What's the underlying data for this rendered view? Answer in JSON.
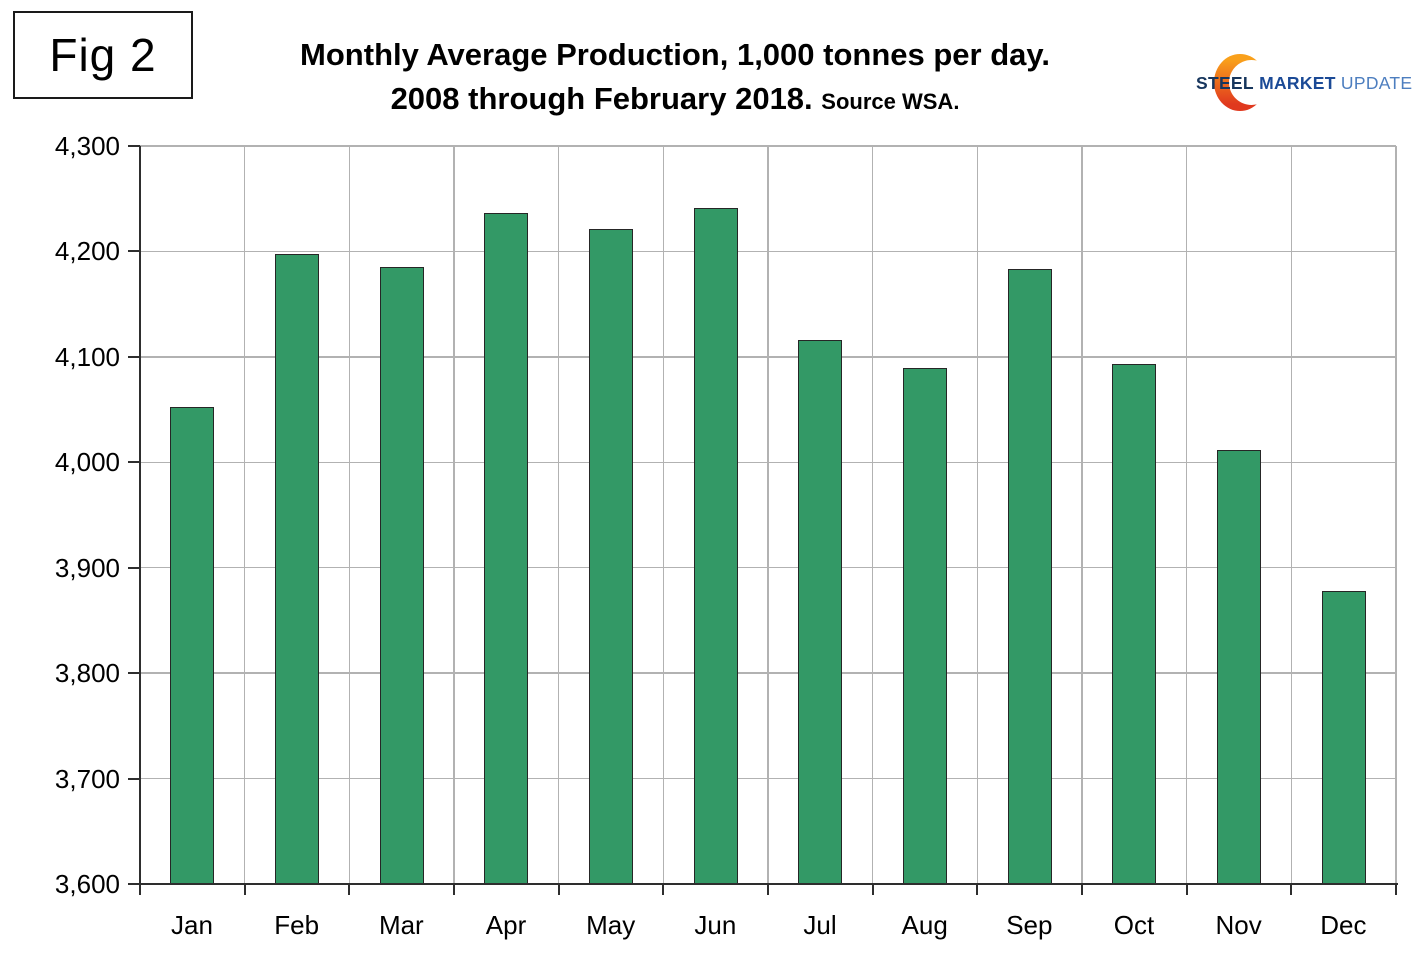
{
  "figure": {
    "label": "Fig 2"
  },
  "title": {
    "line1": "Monthly Average Production, 1,000 tonnes per day.",
    "line2": "2008 through February 2018.",
    "source": "Source WSA."
  },
  "logo": {
    "word1": "STEEL",
    "word2": "MARKET",
    "word3": "UPDATE"
  },
  "colors": {
    "bar_fill": "#339966",
    "bar_border": "#262626",
    "gridline": "#b2b2b2",
    "axis": "#2e2e2e",
    "logo_steel": "#17365d",
    "logo_market": "#1b4a96",
    "logo_update": "#4d7ebf",
    "logo_crescent_top": "#f9a01b",
    "logo_crescent_bottom": "#e0391e"
  },
  "chart_data": {
    "type": "bar",
    "title": "Monthly Average Production, 1,000 tonnes per day. 2008 through February 2018. Source WSA.",
    "categories": [
      "Jan",
      "Feb",
      "Mar",
      "Apr",
      "May",
      "Jun",
      "Jul",
      "Aug",
      "Sep",
      "Oct",
      "Nov",
      "Dec"
    ],
    "values": [
      4052,
      4198,
      4185,
      4236,
      4221,
      4241,
      4116,
      4089,
      4183,
      4093,
      4012,
      3878
    ],
    "xlabel": "",
    "ylabel": "",
    "ylim": [
      3600,
      4300
    ],
    "ytick_step": 100,
    "ytick_labels": [
      "3,600",
      "3,700",
      "3,800",
      "3,900",
      "4,000",
      "4,100",
      "4,200",
      "4,300"
    ],
    "grid": true,
    "legend": false
  }
}
